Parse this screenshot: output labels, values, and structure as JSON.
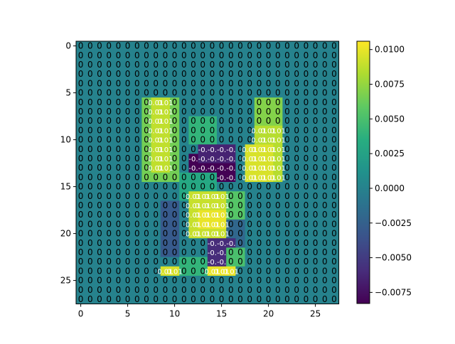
{
  "chart_data": {
    "type": "heatmap",
    "title": "",
    "xlabel": "",
    "ylabel": "",
    "rows": 28,
    "cols": 28,
    "x_ticks": [
      0,
      5,
      10,
      15,
      20,
      25
    ],
    "y_ticks": [
      0,
      5,
      10,
      15,
      20,
      25
    ],
    "colormap": "viridis",
    "colorbar": {
      "vmin": -0.0083,
      "vmax": 0.0106,
      "ticks": [
        -0.0075,
        -0.005,
        -0.0025,
        0.0,
        0.0025,
        0.005,
        0.0075,
        0.01
      ],
      "tick_labels": [
        "−0.0075",
        "−0.0050",
        "−0.0025",
        "0.0000",
        "0.0025",
        "0.0050",
        "0.0075",
        "0.0100"
      ]
    },
    "cell_label_default": "0",
    "cell_label_hot": "0.01",
    "cell_label_cold": "-0.",
    "regions": [
      {
        "r0": 6,
        "r1": 14,
        "c0": 7,
        "c1": 10,
        "v": 0.0065
      },
      {
        "r0": 6,
        "r1": 13,
        "c0": 8,
        "c1": 9,
        "v": 0.0088
      },
      {
        "r0": 8,
        "r1": 10,
        "c0": 12,
        "c1": 14,
        "v": 0.004
      },
      {
        "r0": 7,
        "r1": 14,
        "c0": 19,
        "c1": 21,
        "v": 0.0085
      },
      {
        "r0": 6,
        "r1": 8,
        "c0": 19,
        "c1": 21,
        "v": 0.007
      },
      {
        "r0": 11,
        "r1": 14,
        "c0": 18,
        "c1": 20,
        "v": 0.0095
      },
      {
        "r0": 12,
        "r1": 14,
        "c0": 12,
        "c1": 16,
        "v": -0.0083
      },
      {
        "r0": 11,
        "r1": 12,
        "c0": 13,
        "c1": 16,
        "v": -0.0065
      },
      {
        "r0": 14,
        "r1": 16,
        "c0": 11,
        "c1": 14,
        "v": 0.003
      },
      {
        "r0": 16,
        "r1": 20,
        "c0": 12,
        "c1": 16,
        "v": 0.009
      },
      {
        "r0": 18,
        "r1": 19,
        "c0": 13,
        "c1": 15,
        "v": 0.01
      },
      {
        "r0": 16,
        "r1": 19,
        "c0": 16,
        "c1": 17,
        "v": 0.0055
      },
      {
        "r0": 19,
        "r1": 22,
        "c0": 16,
        "c1": 17,
        "v": -0.002
      },
      {
        "r0": 21,
        "r1": 23,
        "c0": 14,
        "c1": 16,
        "v": -0.006
      },
      {
        "r0": 17,
        "r1": 22,
        "c0": 9,
        "c1": 10,
        "v": -0.003
      },
      {
        "r0": 24,
        "r1": 24,
        "c0": 9,
        "c1": 12,
        "v": 0.0095
      },
      {
        "r0": 24,
        "r1": 24,
        "c0": 13,
        "c1": 16,
        "v": 0.01
      },
      {
        "r0": 23,
        "r1": 24,
        "c0": 11,
        "c1": 13,
        "v": 0.004
      },
      {
        "r0": 22,
        "r1": 23,
        "c0": 16,
        "c1": 17,
        "v": 0.005
      }
    ]
  }
}
